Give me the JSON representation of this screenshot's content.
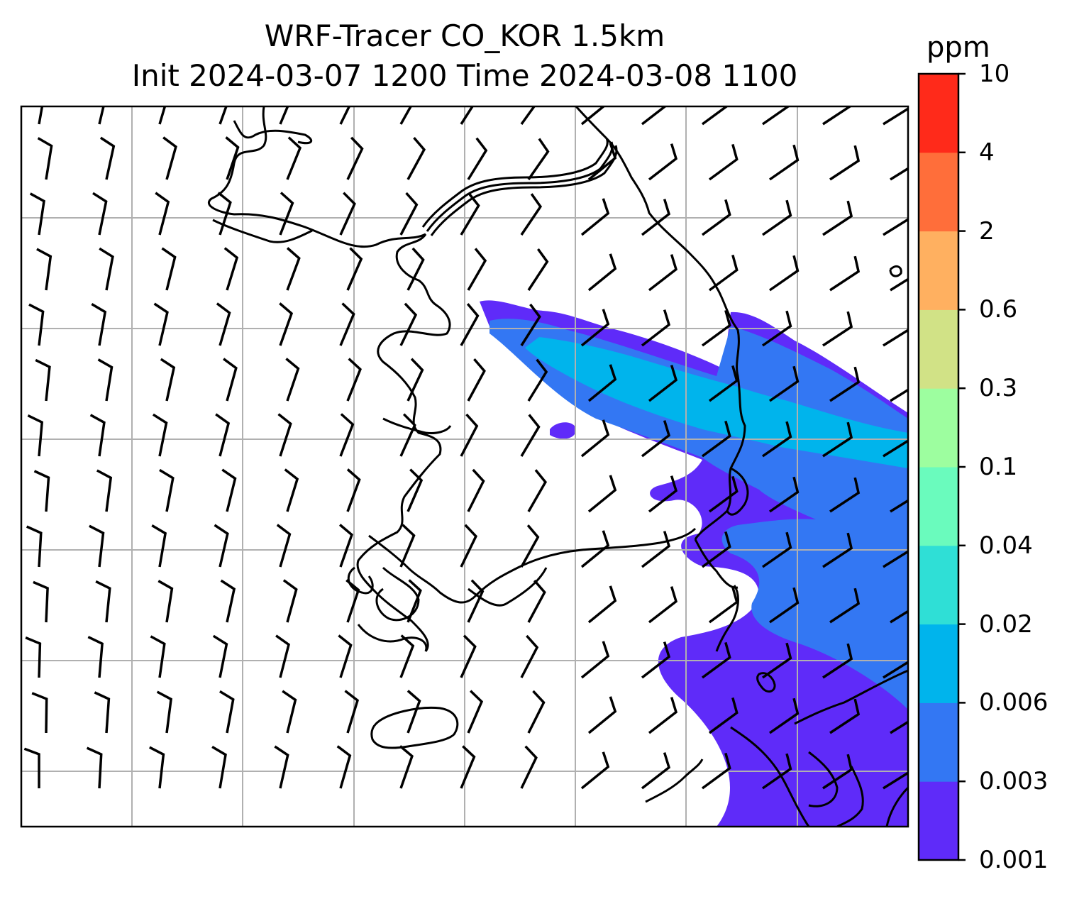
{
  "title_line1": "WRF-Tracer CO_KOR 1.5km",
  "title_line2": "Init 2024-03-07 1200 Time 2024-03-08 1100",
  "colorbar": {
    "unit": "ppm",
    "levels": [
      "0.001",
      "0.003",
      "0.006",
      "0.02",
      "0.04",
      "0.1",
      "0.3",
      "0.6",
      "2",
      "4",
      "10"
    ],
    "colors": [
      "#5f2bf9",
      "#3377f3",
      "#00b4ec",
      "#2fdfd6",
      "#6afbbd",
      "#9dfe9f",
      "#d1e286",
      "#ffb060",
      "#ff6e3a",
      "#ff2a1a"
    ]
  },
  "map": {
    "grid": true,
    "features": [
      "coastlines",
      "country-borders",
      "wind-barbs",
      "tracer-plume"
    ]
  }
}
